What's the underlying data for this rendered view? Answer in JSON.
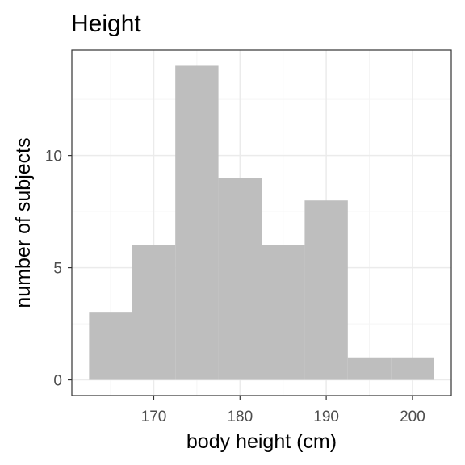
{
  "chart_data": {
    "type": "bar",
    "title": "Height",
    "xlabel": "body height (cm)",
    "ylabel": "number of subjects",
    "bins": [
      {
        "start": 162.5,
        "end": 167.5,
        "count": 3
      },
      {
        "start": 167.5,
        "end": 172.5,
        "count": 6
      },
      {
        "start": 172.5,
        "end": 177.5,
        "count": 14
      },
      {
        "start": 177.5,
        "end": 182.5,
        "count": 9
      },
      {
        "start": 182.5,
        "end": 187.5,
        "count": 6
      },
      {
        "start": 187.5,
        "end": 192.5,
        "count": 8
      },
      {
        "start": 192.5,
        "end": 197.5,
        "count": 1
      },
      {
        "start": 197.5,
        "end": 202.5,
        "count": 1
      }
    ],
    "xlim": [
      160.5,
      204.5
    ],
    "ylim": [
      -0.7,
      14.7
    ],
    "xticks": [
      170,
      180,
      190,
      200
    ],
    "xtick_labels": [
      "170",
      "180",
      "190",
      "200"
    ],
    "yticks": [
      0,
      5,
      10
    ],
    "ytick_labels": [
      "0",
      "5",
      "10"
    ],
    "grid": true,
    "legend": "none",
    "colors": {
      "bar": "#bebebe",
      "grid_major": "#ebebeb",
      "grid_minor": "#f5f5f5",
      "panel_border": "#333333",
      "tick_text": "#4d4d4d"
    }
  }
}
